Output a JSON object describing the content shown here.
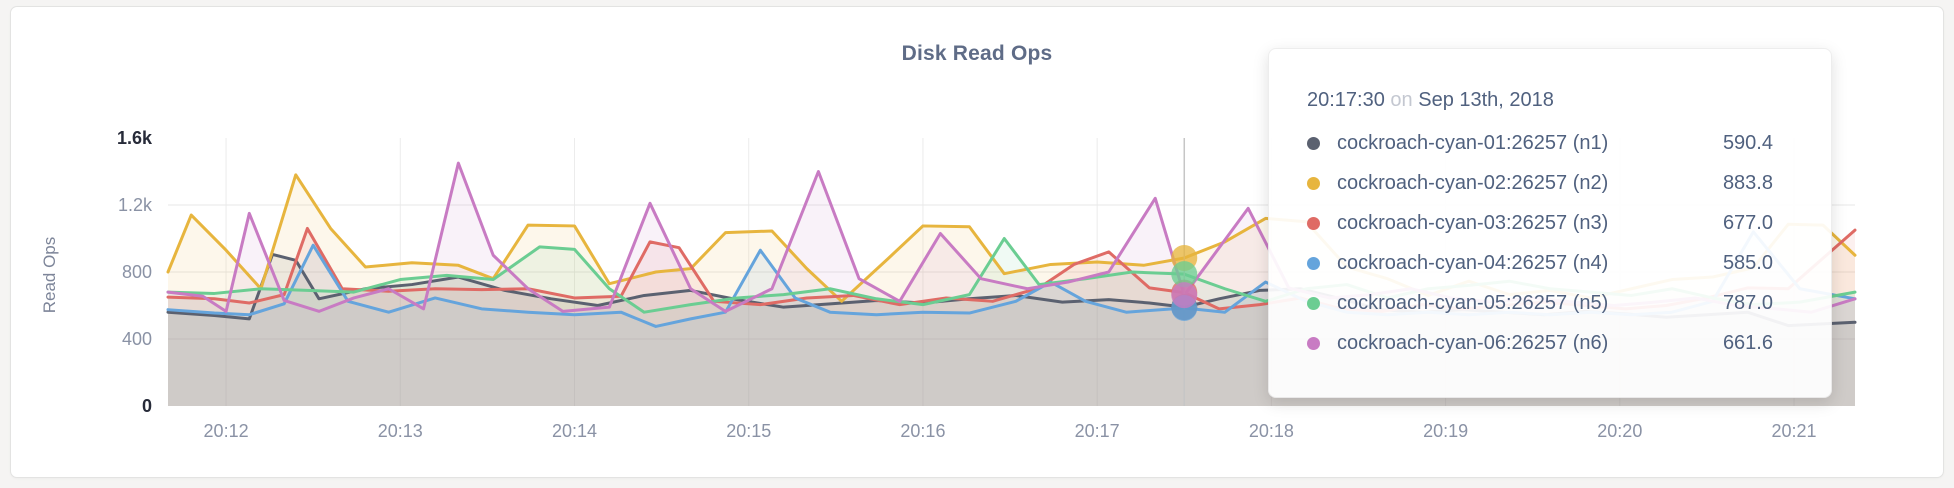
{
  "chart_data": {
    "type": "line",
    "title": "Disk Read Ops",
    "ylabel": "Read Ops",
    "x_domain": [
      700,
      1281
    ],
    "y_domain": [
      0,
      1600
    ],
    "x_domain_note": "seconds after 20:00, Sep 13th 2018",
    "x_ticks": [
      {
        "t": 720,
        "label": "20:12"
      },
      {
        "t": 780,
        "label": "20:13"
      },
      {
        "t": 840,
        "label": "20:14"
      },
      {
        "t": 900,
        "label": "20:15"
      },
      {
        "t": 960,
        "label": "20:16"
      },
      {
        "t": 1020,
        "label": "20:17"
      },
      {
        "t": 1080,
        "label": "20:18"
      },
      {
        "t": 1140,
        "label": "20:19"
      },
      {
        "t": 1200,
        "label": "20:20"
      },
      {
        "t": 1260,
        "label": "20:21"
      }
    ],
    "y_ticks": [
      {
        "v": 0,
        "label": "0",
        "strong": true,
        "gridline": false
      },
      {
        "v": 400,
        "label": "400",
        "strong": false,
        "gridline": true
      },
      {
        "v": 800,
        "label": "800",
        "strong": false,
        "gridline": true
      },
      {
        "v": 1200,
        "label": "1.2k",
        "strong": false,
        "gridline": true
      },
      {
        "v": 1600,
        "label": "1.6k",
        "strong": true,
        "gridline": false
      }
    ],
    "grid": {
      "vertical": true,
      "horizontal": true
    },
    "hover": {
      "t": 1050,
      "time_label": "20:17:30"
    },
    "series": [
      {
        "id": "n1",
        "name": "cockroach-cyan-01:26257 (n1)",
        "color": "#5b6170",
        "points": [
          [
            700,
            560
          ],
          [
            716,
            540
          ],
          [
            728,
            520
          ],
          [
            736,
            905
          ],
          [
            744,
            870
          ],
          [
            752,
            640
          ],
          [
            768,
            700
          ],
          [
            784,
            725
          ],
          [
            800,
            770
          ],
          [
            816,
            690
          ],
          [
            832,
            640
          ],
          [
            848,
            600
          ],
          [
            864,
            660
          ],
          [
            880,
            690
          ],
          [
            896,
            635
          ],
          [
            912,
            590
          ],
          [
            928,
            610
          ],
          [
            944,
            630
          ],
          [
            960,
            615
          ],
          [
            976,
            640
          ],
          [
            992,
            660
          ],
          [
            1008,
            620
          ],
          [
            1024,
            635
          ],
          [
            1038,
            615
          ],
          [
            1050,
            590.4
          ],
          [
            1062,
            640
          ],
          [
            1076,
            690
          ],
          [
            1090,
            700
          ],
          [
            1104,
            640
          ],
          [
            1118,
            575
          ],
          [
            1132,
            560
          ],
          [
            1146,
            575
          ],
          [
            1160,
            560
          ],
          [
            1174,
            545
          ],
          [
            1188,
            565
          ],
          [
            1202,
            550
          ],
          [
            1216,
            530
          ],
          [
            1230,
            545
          ],
          [
            1244,
            560
          ],
          [
            1258,
            480
          ],
          [
            1281,
            500
          ]
        ]
      },
      {
        "id": "n2",
        "name": "cockroach-cyan-02:26257 (n2)",
        "color": "#e7b53e",
        "points": [
          [
            700,
            800
          ],
          [
            708,
            1140
          ],
          [
            720,
            930
          ],
          [
            732,
            700
          ],
          [
            744,
            1380
          ],
          [
            756,
            1060
          ],
          [
            768,
            830
          ],
          [
            784,
            855
          ],
          [
            800,
            840
          ],
          [
            812,
            760
          ],
          [
            824,
            1080
          ],
          [
            840,
            1075
          ],
          [
            852,
            730
          ],
          [
            868,
            800
          ],
          [
            880,
            820
          ],
          [
            892,
            1035
          ],
          [
            908,
            1045
          ],
          [
            920,
            820
          ],
          [
            932,
            625
          ],
          [
            948,
            880
          ],
          [
            960,
            1075
          ],
          [
            976,
            1070
          ],
          [
            988,
            790
          ],
          [
            1004,
            845
          ],
          [
            1020,
            860
          ],
          [
            1036,
            840
          ],
          [
            1050,
            883.8
          ],
          [
            1064,
            980
          ],
          [
            1078,
            1120
          ],
          [
            1092,
            1100
          ],
          [
            1106,
            830
          ],
          [
            1120,
            760
          ],
          [
            1134,
            660
          ],
          [
            1148,
            745
          ],
          [
            1162,
            665
          ],
          [
            1176,
            690
          ],
          [
            1190,
            645
          ],
          [
            1204,
            700
          ],
          [
            1218,
            755
          ],
          [
            1232,
            770
          ],
          [
            1246,
            825
          ],
          [
            1258,
            1085
          ],
          [
            1270,
            1080
          ],
          [
            1281,
            900
          ]
        ]
      },
      {
        "id": "n3",
        "name": "cockroach-cyan-03:26257 (n3)",
        "color": "#df6b65",
        "points": [
          [
            700,
            650
          ],
          [
            716,
            640
          ],
          [
            728,
            615
          ],
          [
            740,
            665
          ],
          [
            748,
            1060
          ],
          [
            760,
            700
          ],
          [
            776,
            685
          ],
          [
            792,
            700
          ],
          [
            808,
            695
          ],
          [
            824,
            700
          ],
          [
            840,
            645
          ],
          [
            856,
            655
          ],
          [
            866,
            980
          ],
          [
            876,
            945
          ],
          [
            888,
            625
          ],
          [
            904,
            605
          ],
          [
            920,
            645
          ],
          [
            936,
            660
          ],
          [
            952,
            605
          ],
          [
            968,
            645
          ],
          [
            984,
            625
          ],
          [
            1000,
            705
          ],
          [
            1012,
            845
          ],
          [
            1024,
            920
          ],
          [
            1038,
            705
          ],
          [
            1050,
            677
          ],
          [
            1062,
            580
          ],
          [
            1076,
            605
          ],
          [
            1090,
            645
          ],
          [
            1104,
            580
          ],
          [
            1118,
            565
          ],
          [
            1132,
            605
          ],
          [
            1146,
            580
          ],
          [
            1160,
            600
          ],
          [
            1174,
            620
          ],
          [
            1188,
            600
          ],
          [
            1202,
            580
          ],
          [
            1216,
            600
          ],
          [
            1230,
            645
          ],
          [
            1244,
            705
          ],
          [
            1258,
            700
          ],
          [
            1281,
            1050
          ]
        ]
      },
      {
        "id": "n4",
        "name": "cockroach-cyan-04:26257 (n4)",
        "color": "#65a4dc",
        "points": [
          [
            700,
            575
          ],
          [
            716,
            555
          ],
          [
            728,
            545
          ],
          [
            740,
            610
          ],
          [
            750,
            960
          ],
          [
            762,
            625
          ],
          [
            776,
            560
          ],
          [
            792,
            645
          ],
          [
            808,
            580
          ],
          [
            824,
            560
          ],
          [
            840,
            545
          ],
          [
            856,
            560
          ],
          [
            868,
            475
          ],
          [
            880,
            520
          ],
          [
            892,
            560
          ],
          [
            904,
            930
          ],
          [
            916,
            645
          ],
          [
            928,
            560
          ],
          [
            944,
            545
          ],
          [
            960,
            560
          ],
          [
            976,
            555
          ],
          [
            992,
            625
          ],
          [
            1004,
            740
          ],
          [
            1016,
            625
          ],
          [
            1030,
            560
          ],
          [
            1050,
            585
          ],
          [
            1064,
            560
          ],
          [
            1078,
            740
          ],
          [
            1092,
            625
          ],
          [
            1106,
            560
          ],
          [
            1120,
            545
          ],
          [
            1134,
            560
          ],
          [
            1148,
            545
          ],
          [
            1162,
            560
          ],
          [
            1176,
            545
          ],
          [
            1190,
            560
          ],
          [
            1204,
            545
          ],
          [
            1218,
            560
          ],
          [
            1232,
            625
          ],
          [
            1246,
            1040
          ],
          [
            1262,
            700
          ],
          [
            1281,
            640
          ]
        ]
      },
      {
        "id": "n5",
        "name": "cockroach-cyan-05:26257 (n5)",
        "color": "#6bcd92",
        "points": [
          [
            700,
            680
          ],
          [
            716,
            672
          ],
          [
            732,
            700
          ],
          [
            748,
            690
          ],
          [
            764,
            680
          ],
          [
            780,
            755
          ],
          [
            796,
            780
          ],
          [
            812,
            755
          ],
          [
            828,
            950
          ],
          [
            840,
            935
          ],
          [
            852,
            700
          ],
          [
            864,
            560
          ],
          [
            880,
            605
          ],
          [
            896,
            645
          ],
          [
            912,
            665
          ],
          [
            928,
            700
          ],
          [
            944,
            640
          ],
          [
            960,
            605
          ],
          [
            976,
            665
          ],
          [
            988,
            1000
          ],
          [
            1000,
            725
          ],
          [
            1016,
            760
          ],
          [
            1032,
            800
          ],
          [
            1050,
            787
          ],
          [
            1064,
            700
          ],
          [
            1078,
            625
          ],
          [
            1092,
            700
          ],
          [
            1106,
            725
          ],
          [
            1120,
            645
          ],
          [
            1134,
            700
          ],
          [
            1148,
            720
          ],
          [
            1162,
            745
          ],
          [
            1176,
            700
          ],
          [
            1190,
            680
          ],
          [
            1204,
            660
          ],
          [
            1218,
            700
          ],
          [
            1232,
            645
          ],
          [
            1246,
            605
          ],
          [
            1262,
            620
          ],
          [
            1281,
            680
          ]
        ]
      },
      {
        "id": "n6",
        "name": "cockroach-cyan-06:26257 (n6)",
        "color": "#c87bc3",
        "points": [
          [
            700,
            680
          ],
          [
            712,
            655
          ],
          [
            720,
            565
          ],
          [
            728,
            1150
          ],
          [
            740,
            630
          ],
          [
            752,
            565
          ],
          [
            764,
            645
          ],
          [
            776,
            700
          ],
          [
            788,
            580
          ],
          [
            800,
            1450
          ],
          [
            812,
            900
          ],
          [
            824,
            700
          ],
          [
            836,
            565
          ],
          [
            852,
            590
          ],
          [
            866,
            1210
          ],
          [
            880,
            700
          ],
          [
            892,
            565
          ],
          [
            908,
            700
          ],
          [
            924,
            1400
          ],
          [
            938,
            760
          ],
          [
            952,
            625
          ],
          [
            966,
            1030
          ],
          [
            980,
            760
          ],
          [
            996,
            700
          ],
          [
            1010,
            740
          ],
          [
            1024,
            800
          ],
          [
            1040,
            1240
          ],
          [
            1050,
            661.6
          ],
          [
            1072,
            1180
          ],
          [
            1086,
            705
          ],
          [
            1100,
            645
          ],
          [
            1114,
            665
          ],
          [
            1128,
            700
          ],
          [
            1142,
            645
          ],
          [
            1156,
            620
          ],
          [
            1170,
            645
          ],
          [
            1184,
            620
          ],
          [
            1198,
            600
          ],
          [
            1212,
            620
          ],
          [
            1226,
            645
          ],
          [
            1240,
            600
          ],
          [
            1254,
            580
          ],
          [
            1266,
            560
          ],
          [
            1281,
            640
          ]
        ]
      }
    ]
  },
  "tooltip": {
    "time": "20:17:30",
    "connector": "on",
    "date": "Sep 13th, 2018",
    "rows": [
      {
        "name": "cockroach-cyan-01:26257 (n1)",
        "value": "590.4",
        "color": "#5b6170"
      },
      {
        "name": "cockroach-cyan-02:26257 (n2)",
        "value": "883.8",
        "color": "#e7b53e"
      },
      {
        "name": "cockroach-cyan-03:26257 (n3)",
        "value": "677.0",
        "color": "#df6b65"
      },
      {
        "name": "cockroach-cyan-04:26257 (n4)",
        "value": "585.0",
        "color": "#65a4dc"
      },
      {
        "name": "cockroach-cyan-05:26257 (n5)",
        "value": "787.0",
        "color": "#6bcd92"
      },
      {
        "name": "cockroach-cyan-06:26257 (n6)",
        "value": "661.6",
        "color": "#c87bc3"
      }
    ]
  },
  "style": {
    "grid_color_h": "#e7e7e7",
    "grid_color_v": "#ececec",
    "guideline_color": "#c6c6c6",
    "area_opacity": 0.1,
    "dot_opacity": 0.78
  }
}
